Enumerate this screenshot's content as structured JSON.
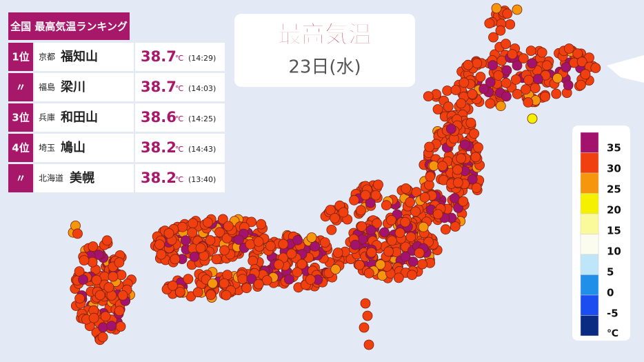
{
  "title_card": {
    "title": "最高気温",
    "date": "23日(水)"
  },
  "ranking": {
    "title": "全国 最高気温ランキング",
    "rows": [
      {
        "rank": "1位",
        "prefecture": "京都",
        "place": "福知山",
        "temp": "38.7",
        "unit": "℃",
        "time": "(14:29)"
      },
      {
        "rank": "〃",
        "prefecture": "福島",
        "place": "梁川",
        "temp": "38.7",
        "unit": "℃",
        "time": "(14:03)"
      },
      {
        "rank": "3位",
        "prefecture": "兵庫",
        "place": "和田山",
        "temp": "38.6",
        "unit": "℃",
        "time": "(14:25)"
      },
      {
        "rank": "4位",
        "prefecture": "埼玉",
        "place": "鳩山",
        "temp": "38.2",
        "unit": "℃",
        "time": "(14:43)"
      },
      {
        "rank": "〃",
        "prefecture": "北海道",
        "place": "美幌",
        "temp": "38.2",
        "unit": "℃",
        "time": "(13:40)"
      }
    ]
  },
  "legend": {
    "labels": [
      35,
      30,
      25,
      20,
      15,
      10,
      5,
      0,
      -5
    ],
    "unit": "℃",
    "colors": [
      "#a3126c",
      "#f0400f",
      "#f5960d",
      "#f5f000",
      "#fbfa9a",
      "#fbfbee",
      "#bfe6f8",
      "#1f8fea",
      "#1b4df0",
      "#0b2a82"
    ]
  }
}
